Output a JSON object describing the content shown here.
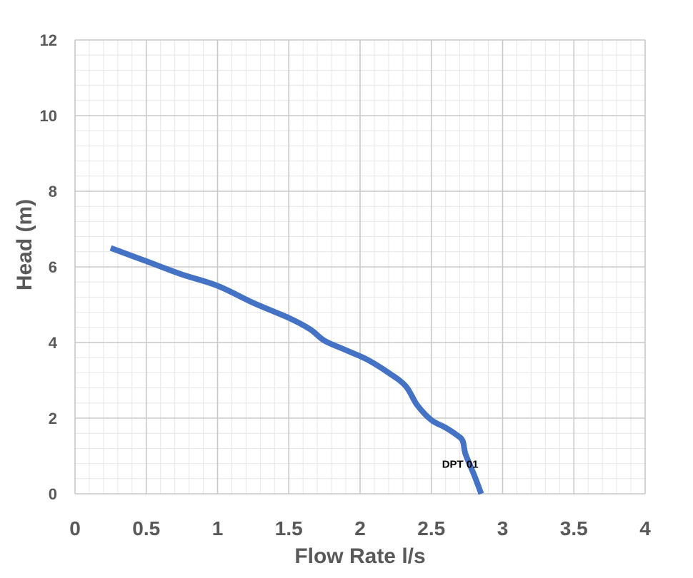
{
  "chart_data": {
    "type": "line",
    "title": "",
    "xlabel": "Flow Rate l/s",
    "ylabel": "Head (m)",
    "xlim": [
      0,
      4
    ],
    "ylim": [
      0,
      12
    ],
    "x_ticks": [
      "0",
      "0.5",
      "1",
      "1.5",
      "2",
      "2.5",
      "3",
      "3.5",
      "4"
    ],
    "y_ticks": [
      "0",
      "2",
      "4",
      "6",
      "8",
      "10",
      "12"
    ],
    "x_tick_values": [
      0,
      0.5,
      1,
      1.5,
      2,
      2.5,
      3,
      3.5,
      4
    ],
    "y_tick_values": [
      0,
      2,
      4,
      6,
      8,
      10,
      12
    ],
    "grid": true,
    "minor_grid": true,
    "legend": "none",
    "series": [
      {
        "name": "DPT 01",
        "color": "#4472C4",
        "x": [
          0.25,
          0.5,
          0.75,
          1.0,
          1.25,
          1.5,
          1.65,
          1.75,
          1.9,
          2.05,
          2.2,
          2.32,
          2.4,
          2.5,
          2.6,
          2.68,
          2.72,
          2.74,
          2.8,
          2.85
        ],
        "y": [
          6.5,
          6.15,
          5.8,
          5.5,
          5.05,
          4.65,
          4.35,
          4.05,
          3.8,
          3.55,
          3.2,
          2.85,
          2.35,
          1.95,
          1.75,
          1.55,
          1.4,
          1.05,
          0.5,
          0.0
        ]
      }
    ],
    "annotations": [
      {
        "text": "DPT 01",
        "x": 2.55,
        "y": 0.8
      }
    ]
  }
}
